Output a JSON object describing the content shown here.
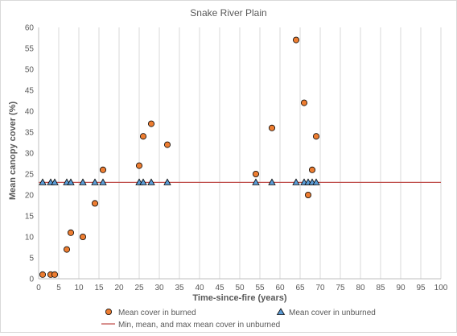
{
  "chart_data": {
    "type": "scatter",
    "title": "Snake River Plain",
    "xlabel": "Time-since-fire (years)",
    "ylabel": "Mean canopy cover (%)",
    "xlim": [
      0,
      100
    ],
    "ylim": [
      0,
      60
    ],
    "x_ticks": [
      0,
      5,
      10,
      15,
      20,
      25,
      30,
      35,
      40,
      45,
      50,
      55,
      60,
      65,
      70,
      75,
      80,
      85,
      90,
      95,
      100
    ],
    "y_ticks": [
      0,
      5,
      10,
      15,
      20,
      25,
      30,
      35,
      40,
      45,
      50,
      55,
      60
    ],
    "grid": {
      "vertical": true,
      "horizontal": false
    },
    "legend_position": "bottom",
    "series": [
      {
        "name": "Mean cover in burned",
        "marker": "circle",
        "color": "#ED7D31",
        "points": [
          [
            1,
            1
          ],
          [
            3,
            1
          ],
          [
            4,
            1
          ],
          [
            7,
            7
          ],
          [
            8,
            11
          ],
          [
            11,
            10
          ],
          [
            14,
            18
          ],
          [
            16,
            26
          ],
          [
            25,
            27
          ],
          [
            26,
            34
          ],
          [
            28,
            37
          ],
          [
            32,
            32
          ],
          [
            54,
            25
          ],
          [
            58,
            36
          ],
          [
            64,
            57
          ],
          [
            66,
            42
          ],
          [
            67,
            20
          ],
          [
            68,
            26
          ],
          [
            69,
            34
          ]
        ]
      },
      {
        "name": "Mean cover in unburned",
        "marker": "triangle",
        "color": "#5B9BD5",
        "points": [
          [
            1,
            23
          ],
          [
            3,
            23
          ],
          [
            4,
            23
          ],
          [
            7,
            23
          ],
          [
            8,
            23
          ],
          [
            11,
            23
          ],
          [
            14,
            23
          ],
          [
            16,
            23
          ],
          [
            25,
            23
          ],
          [
            26,
            23
          ],
          [
            28,
            23
          ],
          [
            32,
            23
          ],
          [
            54,
            23
          ],
          [
            58,
            23
          ],
          [
            64,
            23
          ],
          [
            66,
            23
          ],
          [
            67,
            23
          ],
          [
            68,
            23
          ],
          [
            69,
            23
          ]
        ]
      },
      {
        "name": "Min, mean, and max mean cover in unburned",
        "type": "line",
        "color": "#C0504D",
        "points": [
          [
            0,
            23
          ],
          [
            100,
            23
          ]
        ]
      }
    ]
  }
}
